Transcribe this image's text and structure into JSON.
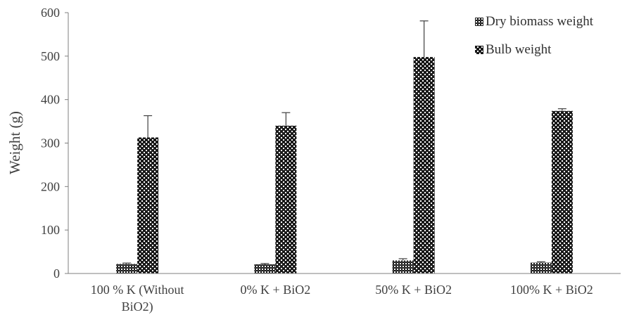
{
  "chart_data": {
    "type": "bar",
    "title": "",
    "xlabel": "",
    "ylabel": "Weight  (g)",
    "ylim": [
      0,
      600
    ],
    "yticks": [
      0,
      100,
      200,
      300,
      400,
      500,
      600
    ],
    "grid": false,
    "legend_position": "top-right",
    "categories": [
      [
        "100 % K (Without",
        "BiO2)"
      ],
      [
        "0% K + BiO2"
      ],
      [
        "50% K + BiO2"
      ],
      [
        "100% K + BiO2"
      ]
    ],
    "series": [
      {
        "name": "Dry biomass weight",
        "pattern": "dense-checker",
        "values": [
          22,
          21,
          30,
          25
        ],
        "errors": [
          2,
          2,
          4,
          2
        ]
      },
      {
        "name": "Bulb weight",
        "pattern": "sparse-checker",
        "values": [
          313,
          340,
          498,
          374
        ],
        "errors": [
          50,
          30,
          83,
          5
        ]
      }
    ]
  }
}
